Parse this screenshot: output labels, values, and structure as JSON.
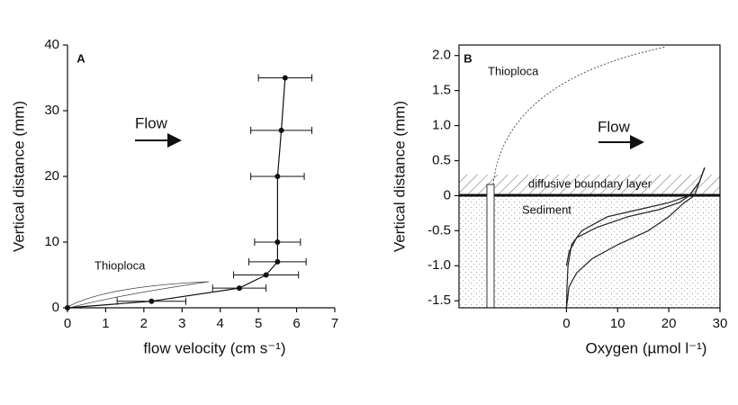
{
  "chart_data": [
    {
      "type": "line",
      "panel_label": "A",
      "ylabel": "Vertical distance (mm)",
      "xlabel": "flow velocity (cm s⁻¹)",
      "annotations": [
        "Flow",
        "Thioploca"
      ],
      "xlim": [
        0,
        7
      ],
      "xticks": [
        0,
        1,
        2,
        3,
        4,
        5,
        6,
        7
      ],
      "ylim": [
        0,
        40
      ],
      "yticks": [
        0,
        10,
        20,
        30,
        40
      ],
      "series": [
        {
          "color": "#111111",
          "x": [
            0,
            2.2,
            4.5,
            5.2,
            5.5,
            5.5,
            5.5,
            5.6,
            5.7
          ],
          "values": [
            0,
            1,
            3,
            5,
            7,
            10,
            20,
            27,
            35
          ],
          "errors": [
            0,
            0.9,
            0.7,
            0.85,
            0.75,
            0.6,
            0.7,
            0.8,
            0.7
          ]
        }
      ]
    },
    {
      "type": "line",
      "panel_label": "B",
      "ylabel": "Vertical distance (mm)",
      "xlabel": "Oxygen  (µmol l⁻¹)",
      "annotations": [
        "Thioploca",
        "Flow",
        "diffusive boundary layer",
        "Sediment"
      ],
      "xlim": [
        -21,
        30
      ],
      "xticks": [
        0,
        10,
        20,
        30
      ],
      "ylim": [
        -1.6,
        2.15
      ],
      "yticks": [
        {
          "value": 2.0,
          "label": "2.0"
        },
        1.5,
        {
          "value": 1.0,
          "label": "1.0"
        },
        0.5,
        0,
        -0.5,
        {
          "value": -1.0,
          "label": "-1.0"
        },
        -1.5
      ],
      "series": [
        {
          "color": "#222222",
          "x": [
            27,
            26,
            24,
            20,
            14,
            8,
            3,
            1,
            0.3,
            0.1,
            0
          ],
          "values": [
            0.4,
            0.2,
            0,
            -0.1,
            -0.2,
            -0.3,
            -0.5,
            -0.7,
            -1.0,
            -1.3,
            -1.6
          ]
        },
        {
          "color": "#222222",
          "x": [
            27,
            26,
            24,
            22,
            18,
            12,
            6,
            2,
            0.5,
            0
          ],
          "values": [
            0.4,
            0.2,
            0,
            -0.1,
            -0.2,
            -0.3,
            -0.45,
            -0.6,
            -0.8,
            -1.0
          ]
        },
        {
          "color": "#222222",
          "x": [
            27,
            26,
            25,
            23,
            20,
            16,
            10,
            5,
            2,
            0.5,
            0
          ],
          "values": [
            0.4,
            0.2,
            0,
            -0.1,
            -0.3,
            -0.5,
            -0.7,
            -0.9,
            -1.1,
            -1.3,
            -1.6
          ]
        }
      ]
    }
  ]
}
